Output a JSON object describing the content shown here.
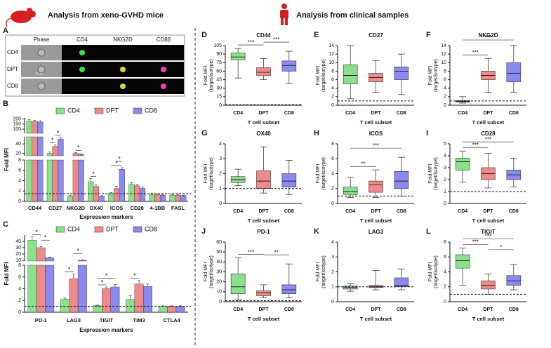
{
  "header": {
    "left_title": "Analysis from xeno-GVHD mice",
    "right_title": "Analysis from clinical samples"
  },
  "figure_a": {
    "label": "A",
    "columns": [
      "Phase",
      "CD4",
      "NKG2D",
      "CD8β"
    ],
    "rows": [
      "CD4",
      "DPT",
      "CD8"
    ],
    "scale": "10 µm"
  },
  "chart_data": [
    {
      "type": "segmented_bar",
      "label": "B",
      "ylabel": "Fold MFI",
      "xlabel": "Expression markers",
      "categories": [
        "CD44",
        "CD27",
        "NKG2D",
        "OX40",
        "ICOS",
        "CD28",
        "4-1BB",
        "FASL"
      ],
      "series": [
        {
          "name": "CD4",
          "color": "#8be08b",
          "values": [
            180,
            20,
            1,
            3.8,
            1.5,
            3.3,
            1.3,
            1.2
          ],
          "errors": [
            15,
            3,
            0.2,
            0.6,
            0.2,
            0.3,
            0.1,
            0.1
          ]
        },
        {
          "name": "DPT",
          "color": "#f08a8a",
          "values": [
            175,
            35,
            20,
            2.9,
            2.5,
            3.0,
            1.3,
            1.2
          ],
          "errors": [
            12,
            3,
            2,
            0.3,
            0.4,
            0.3,
            0.1,
            0.1
          ]
        },
        {
          "name": "CD8",
          "color": "#8a8af0",
          "values": [
            170,
            50,
            18,
            1,
            6.2,
            2.5,
            1.2,
            1.1
          ],
          "errors": [
            12,
            4,
            1,
            0.1,
            0.3,
            0.3,
            0.1,
            0.1
          ]
        }
      ],
      "segments": [
        {
          "ylim": [
            0,
            8
          ],
          "yticks": [
            0,
            2,
            4,
            6,
            8
          ]
        },
        {
          "ylim": [
            15,
            55
          ],
          "yticks": [
            20,
            40
          ]
        },
        {
          "ylim": [
            60,
            210
          ],
          "yticks": [
            100,
            150,
            200
          ]
        }
      ],
      "ref_line": 1.5,
      "annotations": [
        {
          "text": "*",
          "category": "CD27",
          "pair": [
            "CD4",
            "DPT"
          ]
        },
        {
          "text": "*",
          "category": "CD27",
          "pair": [
            "DPT",
            "CD8"
          ]
        },
        {
          "text": "*",
          "category": "NKG2D",
          "pair": [
            "DPT",
            "CD8"
          ]
        },
        {
          "text": "*",
          "category": "OX40",
          "pair": [
            "CD4",
            "DPT"
          ]
        },
        {
          "text": "*",
          "category": "ICOS",
          "pair": [
            "CD4",
            "CD8"
          ]
        },
        {
          "text": "*",
          "category": "ICOS",
          "pair": [
            "DPT",
            "CD8"
          ]
        }
      ]
    },
    {
      "type": "segmented_bar",
      "label": "C",
      "ylabel": "Fold MFI",
      "xlabel": "Expression markers",
      "categories": [
        "PD-1",
        "LAG3",
        "TIGIT",
        "TIM3",
        "CTLA4"
      ],
      "series": [
        {
          "name": "CD4",
          "color": "#8be08b",
          "values": [
            42,
            2.2,
            1.1,
            2.2,
            1
          ],
          "errors": [
            5,
            0.2,
            0.1,
            0.6,
            0.1
          ]
        },
        {
          "name": "DPT",
          "color": "#f08a8a",
          "values": [
            30,
            5.7,
            4,
            4.8,
            1
          ],
          "errors": [
            2,
            0.8,
            0.3,
            0.6,
            0.1
          ]
        },
        {
          "name": "CD8",
          "color": "#8a8af0",
          "values": [
            14,
            10,
            4.3,
            4.4,
            1
          ],
          "errors": [
            1,
            1,
            0.4,
            0.4,
            0.1
          ]
        }
      ],
      "segments": [
        {
          "ylim": [
            0,
            8
          ],
          "yticks": [
            0,
            2,
            4,
            6,
            8
          ]
        },
        {
          "ylim": [
            9,
            50
          ],
          "yticks": [
            10,
            20,
            30,
            40
          ]
        }
      ],
      "ref_line": 1,
      "annotations": [
        {
          "text": "*",
          "category": "PD-1",
          "pair": [
            "CD4",
            "DPT"
          ]
        },
        {
          "text": "*",
          "category": "PD-1",
          "pair": [
            "DPT",
            "CD8"
          ]
        },
        {
          "text": "*",
          "category": "LAG3",
          "pair": [
            "CD4",
            "DPT"
          ]
        },
        {
          "text": "*",
          "category": "LAG3",
          "pair": [
            "DPT",
            "CD8"
          ]
        },
        {
          "text": "*",
          "category": "TIGIT",
          "pair": [
            "CD4",
            "DPT"
          ]
        },
        {
          "text": "*",
          "category": "TIGIT",
          "pair": [
            "CD4",
            "CD8"
          ]
        },
        {
          "text": "*",
          "category": "TIM3",
          "pair": [
            "CD4",
            "DPT"
          ]
        }
      ]
    },
    {
      "type": "box",
      "label": "D",
      "title": "CD44",
      "ylabel": [
        "Fold MFI",
        "(target/isotype)"
      ],
      "xlabel": "T cell subset",
      "categories": [
        "CD4",
        "DPT",
        "CD8"
      ],
      "colors": [
        "#8be08b",
        "#f08a8a",
        "#8a8af0"
      ],
      "ylim": [
        0,
        105
      ],
      "yticks": [
        0,
        15,
        30,
        45,
        60,
        75,
        90,
        105
      ],
      "ref_line": 1,
      "boxes": [
        {
          "min": 48,
          "q1": 80,
          "median": 85,
          "q3": 92,
          "max": 100
        },
        {
          "min": 45,
          "q1": 52,
          "median": 58,
          "q3": 66,
          "max": 82
        },
        {
          "min": 38,
          "q1": 60,
          "median": 70,
          "q3": 78,
          "max": 95
        }
      ],
      "sig": [
        {
          "text": "***",
          "between": [
            "CD4",
            "DPT"
          ]
        },
        {
          "text": "***",
          "between": [
            "DPT",
            "CD8"
          ]
        }
      ]
    },
    {
      "type": "box",
      "label": "E",
      "title": "CD27",
      "ylabel": [
        "Fold MFI",
        "(target/isotype)"
      ],
      "xlabel": "T cell subset",
      "categories": [
        "CD4",
        "DPT",
        "CD8"
      ],
      "colors": [
        "#8be08b",
        "#f08a8a",
        "#8a8af0"
      ],
      "ylim": [
        0,
        14
      ],
      "yticks": [
        0,
        2,
        4,
        6,
        8,
        10,
        12,
        14
      ],
      "ref_line": 1,
      "boxes": [
        {
          "min": 1.5,
          "q1": 5,
          "median": 7,
          "q3": 9.5,
          "max": 14
        },
        {
          "min": 3,
          "q1": 5.5,
          "median": 6.5,
          "q3": 7.5,
          "max": 10.5
        },
        {
          "min": 2.5,
          "q1": 6,
          "median": 8,
          "q3": 9,
          "max": 12
        }
      ],
      "sig": []
    },
    {
      "type": "box",
      "label": "F",
      "title": "NKG2D",
      "ylabel": [
        "Fold MFI",
        "(target/isotype)"
      ],
      "xlabel": "T cell subset",
      "categories": [
        "CD4",
        "DPT",
        "CD8"
      ],
      "colors": [
        "#8be08b",
        "#f08a8a",
        "#8a8af0"
      ],
      "ylim": [
        0,
        14
      ],
      "yticks": [
        0,
        2,
        4,
        6,
        8,
        10,
        12,
        14
      ],
      "ref_line": 1,
      "boxes": [
        {
          "min": 0.5,
          "q1": 0.7,
          "median": 0.9,
          "q3": 1.1,
          "max": 2
        },
        {
          "min": 3,
          "q1": 6,
          "median": 7,
          "q3": 8,
          "max": 11
        },
        {
          "min": 3,
          "q1": 5.5,
          "median": 7.5,
          "q3": 10,
          "max": 14
        }
      ],
      "sig": [
        {
          "text": "***",
          "between": [
            "CD4",
            "DPT"
          ]
        },
        {
          "text": "***",
          "between": [
            "CD4",
            "CD8"
          ]
        }
      ]
    },
    {
      "type": "box",
      "label": "G",
      "title": "OX40",
      "ylabel": [
        "Fold MFI",
        "(target/isotype)"
      ],
      "xlabel": "T cell subset",
      "categories": [
        "CD4",
        "DPT",
        "CD8"
      ],
      "colors": [
        "#8be08b",
        "#f08a8a",
        "#8a8af0"
      ],
      "ylim": [
        0,
        4
      ],
      "yticks": [
        0,
        1,
        2,
        3,
        4
      ],
      "ref_line": 1,
      "boxes": [
        {
          "min": 1.2,
          "q1": 1.4,
          "median": 1.6,
          "q3": 1.8,
          "max": 2.3
        },
        {
          "min": 0.7,
          "q1": 1,
          "median": 1.5,
          "q3": 2.2,
          "max": 3.8
        },
        {
          "min": 0.6,
          "q1": 1.1,
          "median": 1.5,
          "q3": 2,
          "max": 2.9
        }
      ],
      "sig": []
    },
    {
      "type": "box",
      "label": "H",
      "title": "ICOS",
      "ylabel": [
        "Fold MFI",
        "(target/isotype)"
      ],
      "xlabel": "T cell subset",
      "categories": [
        "CD4",
        "DPT",
        "CD8"
      ],
      "colors": [
        "#8be08b",
        "#f08a8a",
        "#8a8af0"
      ],
      "ylim": [
        0,
        8
      ],
      "yticks": [
        0,
        2,
        4,
        6,
        8
      ],
      "ref_line": 1,
      "boxes": [
        {
          "min": 0.8,
          "q1": 1.2,
          "median": 1.6,
          "q3": 2.2,
          "max": 3.5
        },
        {
          "min": 0.8,
          "q1": 1.5,
          "median": 2.5,
          "q3": 3,
          "max": 4.5
        },
        {
          "min": 1,
          "q1": 2,
          "median": 3,
          "q3": 4.3,
          "max": 6.2
        }
      ],
      "sig": [
        {
          "text": "**",
          "between": [
            "CD4",
            "DPT"
          ]
        },
        {
          "text": "***",
          "between": [
            "CD4",
            "CD8"
          ]
        }
      ]
    },
    {
      "type": "box",
      "label": "I",
      "title": "CD28",
      "ylabel": [
        "Fold MFI",
        "(target/isotype)"
      ],
      "xlabel": "T cell subset",
      "categories": [
        "CD4",
        "DPT",
        "CD8"
      ],
      "colors": [
        "#8be08b",
        "#f08a8a",
        "#8a8af0"
      ],
      "ylim": [
        0,
        5
      ],
      "yticks": [
        0,
        1,
        2,
        3,
        4,
        5
      ],
      "ref_line": 1,
      "boxes": [
        {
          "min": 1.8,
          "q1": 2.8,
          "median": 3.5,
          "q3": 3.8,
          "max": 4.4
        },
        {
          "min": 1.3,
          "q1": 2,
          "median": 2.5,
          "q3": 3,
          "max": 4.2
        },
        {
          "min": 1.4,
          "q1": 2,
          "median": 2.4,
          "q3": 2.8,
          "max": 3.8
        }
      ],
      "sig": [
        {
          "text": "***",
          "between": [
            "CD4",
            "DPT"
          ]
        },
        {
          "text": "***",
          "between": [
            "CD4",
            "CD8"
          ]
        }
      ]
    },
    {
      "type": "box",
      "label": "J",
      "title": "PD-1",
      "ylabel": [
        "Fold MFI",
        "(target/isotype)"
      ],
      "xlabel": "T cell subset",
      "categories": [
        "CD4",
        "DPT",
        "CD8"
      ],
      "colors": [
        "#8be08b",
        "#f08a8a",
        "#8a8af0"
      ],
      "ylim": [
        0,
        60
      ],
      "yticks": [
        0,
        10,
        20,
        30,
        40,
        50,
        60
      ],
      "ref_line": 1,
      "boxes": [
        {
          "min": 2,
          "q1": 8,
          "median": 15,
          "q3": 28,
          "max": 44
        },
        {
          "min": 4,
          "q1": 6,
          "median": 9,
          "q3": 11,
          "max": 17
        },
        {
          "min": 4,
          "q1": 8,
          "median": 12,
          "q3": 17,
          "max": 38
        }
      ],
      "sig": [
        {
          "text": "***",
          "between": [
            "CD4",
            "DPT"
          ]
        },
        {
          "text": "**",
          "between": [
            "DPT",
            "CD8"
          ]
        }
      ]
    },
    {
      "type": "box",
      "label": "K",
      "title": "LAG3",
      "ylabel": [
        "Fold MFI",
        "(target/isotype)"
      ],
      "xlabel": "T cell subset",
      "categories": [
        "CD4",
        "DPT",
        "CD8"
      ],
      "colors": [
        "#8be08b",
        "#f08a8a",
        "#8a8af0"
      ],
      "ylim": [
        0,
        4
      ],
      "yticks": [
        0,
        1,
        2,
        3,
        4
      ],
      "ref_line": 1,
      "boxes": [
        {
          "min": 0.7,
          "q1": 0.85,
          "median": 0.95,
          "q3": 1.05,
          "max": 1.2
        },
        {
          "min": 0.8,
          "q1": 0.95,
          "median": 1,
          "q3": 1.1,
          "max": 2.1
        },
        {
          "min": 0.8,
          "q1": 1,
          "median": 1.1,
          "q3": 1.6,
          "max": 2.2
        }
      ],
      "sig": []
    },
    {
      "type": "box",
      "label": "L",
      "title": "TIGIT",
      "ylabel": [
        "Fold MFI",
        "(target/isotype)"
      ],
      "xlabel": "T cell subset",
      "categories": [
        "CD4",
        "DPT",
        "CD8"
      ],
      "colors": [
        "#8be08b",
        "#f08a8a",
        "#8a8af0"
      ],
      "ylim": [
        0,
        8
      ],
      "yticks": [
        0,
        2,
        4,
        6,
        8
      ],
      "ref_line": 1,
      "boxes": [
        {
          "min": 2.2,
          "q1": 4.5,
          "median": 5.5,
          "q3": 6.3,
          "max": 7.2
        },
        {
          "min": 1,
          "q1": 1.7,
          "median": 2.2,
          "q3": 2.8,
          "max": 3.7
        },
        {
          "min": 1.6,
          "q1": 2.2,
          "median": 2.8,
          "q3": 3.5,
          "max": 5
        }
      ],
      "sig": [
        {
          "text": "***",
          "between": [
            "CD4",
            "DPT"
          ]
        },
        {
          "text": "***",
          "between": [
            "CD4",
            "CD8"
          ]
        },
        {
          "text": "*",
          "between": [
            "DPT",
            "CD8"
          ]
        }
      ]
    }
  ]
}
